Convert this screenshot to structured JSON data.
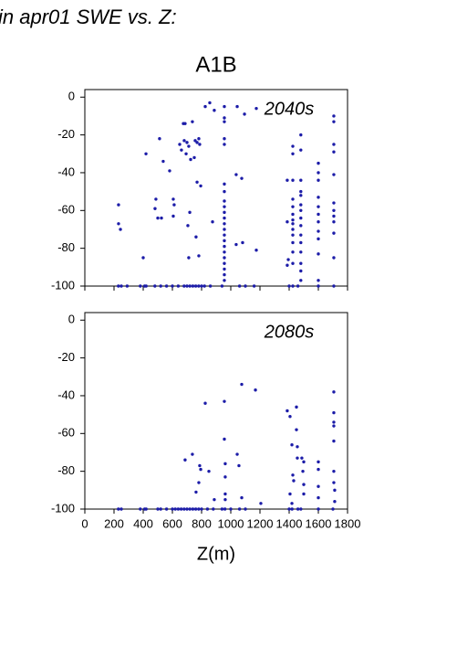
{
  "title": "in apr01 SWE vs. Z:",
  "chart_data": [
    {
      "type": "scatter",
      "title": "A1B",
      "annotation": "2040s",
      "color": "#1c1ca8",
      "annotation_color": "#2a2abf",
      "xlim": [
        0,
        1800
      ],
      "xticks": [
        0,
        200,
        400,
        600,
        800,
        1000,
        1200,
        1400,
        1600,
        1800
      ],
      "xticklabels": false,
      "ylim": [
        -100,
        4
      ],
      "yticks": [
        0,
        -20,
        -40,
        -60,
        -80,
        -100
      ],
      "x": [
        230,
        250,
        290,
        380,
        410,
        420,
        480,
        520,
        560,
        600,
        640,
        680,
        700,
        720,
        740,
        760,
        780,
        800,
        820,
        860,
        940,
        1060,
        1100,
        1160,
        1400,
        1460,
        231,
        231,
        244,
        400,
        419,
        481,
        487,
        500,
        525,
        512,
        537,
        581,
        606,
        612,
        606,
        650,
        662,
        675,
        687,
        681,
        694,
        700,
        712,
        725,
        719,
        737,
        750,
        756,
        769,
        781,
        787,
        769,
        794,
        706,
        762,
        712,
        781,
        825,
        856,
        887,
        875,
        956,
        956,
        956,
        956,
        956,
        956,
        956,
        956,
        956,
        956,
        956,
        956,
        956,
        956,
        956,
        956,
        956,
        956,
        956,
        956,
        956,
        956,
        1044,
        1037,
        1075,
        1037,
        1081,
        1094,
        1175,
        1175,
        1387,
        1387,
        1394,
        1387,
        1425,
        1425,
        1425,
        1425,
        1425,
        1425,
        1425,
        1425,
        1425,
        1425,
        1425,
        1425,
        1425,
        1425,
        1480,
        1480,
        1480,
        1480,
        1480,
        1480,
        1480,
        1480,
        1480,
        1480,
        1480,
        1480,
        1480,
        1480,
        1480,
        1600,
        1600,
        1600,
        1600,
        1600,
        1600,
        1600,
        1600,
        1600,
        1600,
        1600,
        1600,
        1706,
        1706,
        1706,
        1706,
        1706,
        1706,
        1706,
        1706,
        1706,
        1706,
        1706,
        1706
      ],
      "values": [
        -100,
        -100,
        -100,
        -100,
        -100,
        -100,
        -100,
        -100,
        -100,
        -100,
        -100,
        -100,
        -100,
        -100,
        -100,
        -100,
        -100,
        -100,
        -100,
        -100,
        -100,
        -100,
        -100,
        -100,
        -100,
        -100,
        -57,
        -67,
        -70,
        -85,
        -30,
        -59,
        -54,
        -64,
        -64,
        -22,
        -34,
        -39,
        -54,
        -57,
        -63,
        -25,
        -28,
        -14,
        -14,
        -23,
        -30,
        -24,
        -26,
        -33,
        -61,
        -13,
        -32,
        -23,
        -24,
        -22,
        -25,
        -45,
        -47,
        -68,
        -74,
        -85,
        -84,
        -5,
        -3,
        -7,
        -66,
        -5,
        -11,
        -13,
        -22,
        -25,
        -46,
        -50,
        -55,
        -58,
        -61,
        -64,
        -67,
        -70,
        -73,
        -76,
        -79,
        -82,
        -85,
        -88,
        -91,
        -94,
        -97,
        -5,
        -41,
        -43,
        -78,
        -77,
        -9,
        -6,
        -81,
        -44,
        -66,
        -86,
        -89,
        -26,
        -30,
        -44,
        -54,
        -58,
        -62,
        -65,
        -67,
        -70,
        -73,
        -77,
        -82,
        -88,
        -100,
        -20,
        -28,
        -44,
        -50,
        -52,
        -57,
        -60,
        -64,
        -68,
        -73,
        -77,
        -82,
        -88,
        -92,
        -97,
        -35,
        -40,
        -44,
        -53,
        -58,
        -62,
        -66,
        -71,
        -75,
        -83,
        -97,
        -100,
        -10,
        -13,
        -25,
        -29,
        -41,
        -56,
        -60,
        -63,
        -66,
        -72,
        -85,
        -100
      ]
    },
    {
      "type": "scatter",
      "annotation": "2080s",
      "color": "#1c1ca8",
      "annotation_color": "#2a2abf",
      "xlabel": "Z(m)",
      "xlim": [
        0,
        1800
      ],
      "xticks": [
        0,
        200,
        400,
        600,
        800,
        1000,
        1200,
        1400,
        1600,
        1800
      ],
      "xticklabels": true,
      "ylim": [
        -100,
        4
      ],
      "yticks": [
        0,
        -20,
        -40,
        -60,
        -80,
        -100
      ],
      "x": [
        230,
        250,
        380,
        410,
        420,
        500,
        520,
        560,
        600,
        620,
        640,
        660,
        680,
        700,
        720,
        740,
        760,
        780,
        800,
        840,
        880,
        940,
        960,
        1000,
        1060,
        1100,
        1400,
        1420,
        1460,
        1480,
        1600,
        1700,
        687,
        737,
        762,
        781,
        787,
        794,
        825,
        850,
        887,
        956,
        956,
        962,
        962,
        962,
        962,
        1044,
        1056,
        1075,
        1075,
        1169,
        1206,
        1387,
        1406,
        1419,
        1425,
        1431,
        1406,
        1419,
        1450,
        1456,
        1487,
        1500,
        1494,
        1500,
        1500,
        1450,
        1456,
        1600,
        1600,
        1600,
        1600,
        1706,
        1706,
        1706,
        1706,
        1706,
        1706,
        1706,
        1712,
        1712
      ],
      "values": [
        -100,
        -100,
        -100,
        -100,
        -100,
        -100,
        -100,
        -100,
        -100,
        -100,
        -100,
        -100,
        -100,
        -100,
        -100,
        -100,
        -100,
        -100,
        -100,
        -100,
        -100,
        -100,
        -100,
        -100,
        -100,
        -100,
        -100,
        -100,
        -100,
        -100,
        -100,
        -100,
        -74,
        -71,
        -91,
        -86,
        -77,
        -79,
        -44,
        -80,
        -95,
        -43,
        -63,
        -76,
        -83,
        -92,
        -95,
        -71,
        -77,
        -94,
        -34,
        -37,
        -97,
        -48,
        -51,
        -66,
        -82,
        -85,
        -92,
        -97,
        -46,
        -73,
        -73,
        -75,
        -80,
        -87,
        -92,
        -58,
        -67,
        -75,
        -79,
        -88,
        -94,
        -38,
        -49,
        -54,
        -56,
        -64,
        -80,
        -86,
        -90,
        -96
      ]
    }
  ]
}
